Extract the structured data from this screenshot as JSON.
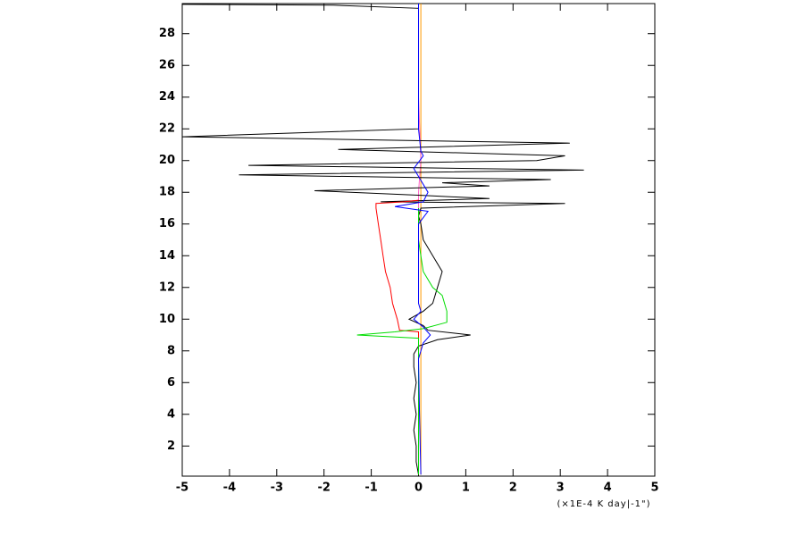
{
  "chart_data": {
    "type": "line",
    "orientation": "profile",
    "x_label": "(×1E-4 K day|-1\")",
    "xlim": [
      -5,
      5
    ],
    "ylim": [
      0.1,
      29.9
    ],
    "xticks": [
      -5,
      -4,
      -3,
      -2,
      -1,
      0,
      1,
      2,
      3,
      4,
      5
    ],
    "yticks": [
      2,
      4,
      6,
      8,
      10,
      12,
      14,
      16,
      18,
      20,
      22,
      24,
      26,
      28
    ],
    "series": [
      {
        "color": "#ff9900",
        "x": [
          0.05,
          0.05,
          0.05,
          0.05,
          0.05,
          0.05,
          0.05,
          0.05
        ],
        "y": [
          0.2,
          4,
          8,
          10,
          14,
          17,
          22,
          29.9
        ]
      },
      {
        "color": "#ff66cc",
        "x": [
          0,
          0,
          0.05,
          0,
          0
        ],
        "y": [
          16,
          18,
          20,
          24,
          29.9
        ]
      },
      {
        "color": "#000000",
        "x": [
          0,
          -0.05,
          -0.05,
          -0.1,
          -0.05,
          -0.1,
          -0.05,
          -0.1,
          -0.1,
          0,
          0.4,
          1.1,
          0.2,
          0.1,
          -0.2,
          0.1,
          0.3,
          0.4,
          0.5,
          0.3,
          0.1,
          0.05,
          0,
          0.05,
          3.1,
          -0.8,
          1.5,
          0.1,
          -2.2,
          1.5,
          0.5,
          2.8,
          -3.8,
          3.5,
          -3.6,
          2.5,
          3.1,
          -1.7,
          3.2,
          -5.0,
          0,
          0,
          -1.8,
          -5.0
        ],
        "y": [
          0.2,
          1,
          2,
          3,
          4,
          5,
          6,
          7,
          7.8,
          8.3,
          8.7,
          9.0,
          9.3,
          9.6,
          10,
          10.5,
          11,
          12,
          13,
          14,
          15,
          16,
          16.5,
          17,
          17.3,
          17.4,
          17.6,
          17.8,
          18.1,
          18.4,
          18.6,
          18.8,
          19.1,
          19.4,
          19.7,
          20.0,
          20.3,
          20.7,
          21.1,
          21.5,
          22,
          29.6,
          29.8,
          29.85
        ]
      },
      {
        "color": "#ff0000",
        "x": [
          0,
          0,
          -0.4,
          -0.45,
          -0.55,
          -0.6,
          -0.7,
          -0.75,
          -0.8,
          -0.85,
          -0.9,
          -0.9,
          -0.3,
          0
        ],
        "y": [
          0.2,
          9.2,
          9.3,
          10,
          11,
          12,
          13,
          14,
          15,
          16,
          17,
          17.3,
          17.4,
          17.5
        ]
      },
      {
        "color": "#00dd00",
        "x": [
          0,
          0,
          -1.3,
          -0.5,
          0.1,
          0.6,
          0.6,
          0.5,
          0.3,
          0.1,
          0.05,
          0,
          0
        ],
        "y": [
          0.2,
          8.8,
          9.0,
          9.2,
          9.4,
          9.8,
          10.5,
          11.5,
          12,
          13,
          14,
          15,
          17
        ]
      },
      {
        "color": "#0000ff",
        "x": [
          0.05,
          0.02,
          0,
          0.1,
          0.25,
          0.1,
          -0.1,
          0.05,
          0,
          0,
          0.2,
          -0.5,
          0.1,
          0.2,
          0,
          -0.1,
          0.1,
          0.05,
          0,
          0
        ],
        "y": [
          0.2,
          4,
          7.5,
          8.5,
          9,
          9.5,
          10,
          10.5,
          11,
          16,
          16.8,
          17.1,
          17.4,
          18,
          19,
          19.5,
          20.3,
          20.6,
          22,
          29.9
        ]
      }
    ]
  }
}
